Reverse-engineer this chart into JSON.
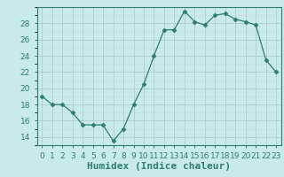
{
  "title": "",
  "xlabel": "Humidex (Indice chaleur)",
  "ylabel": "",
  "x": [
    0,
    1,
    2,
    3,
    4,
    5,
    6,
    7,
    8,
    9,
    10,
    11,
    12,
    13,
    14,
    15,
    16,
    17,
    18,
    19,
    20,
    21,
    22,
    23
  ],
  "y": [
    19.0,
    18.0,
    18.0,
    17.0,
    15.5,
    15.5,
    15.5,
    13.5,
    15.0,
    18.0,
    20.5,
    24.0,
    27.2,
    27.2,
    29.5,
    28.2,
    27.8,
    29.0,
    29.2,
    28.5,
    28.2,
    27.8,
    23.5,
    22.0
  ],
  "line_color": "#2e7d6e",
  "marker": "D",
  "marker_size": 2.5,
  "background_color": "#c8eaea",
  "ylim": [
    13.0,
    30.0
  ],
  "xlim": [
    -0.5,
    23.5
  ],
  "yticks": [
    14,
    16,
    18,
    20,
    22,
    24,
    26,
    28
  ],
  "xtick_labels": [
    "0",
    "1",
    "2",
    "3",
    "4",
    "5",
    "6",
    "7",
    "8",
    "9",
    "10",
    "11",
    "12",
    "13",
    "14",
    "15",
    "16",
    "17",
    "18",
    "19",
    "20",
    "21",
    "22",
    "23"
  ],
  "xlabel_fontsize": 8,
  "tick_fontsize": 6.5,
  "axis_color": "#2e7d6e",
  "grid_major_color": "#b0cccc",
  "grid_minor_color": "#c0dcdc"
}
